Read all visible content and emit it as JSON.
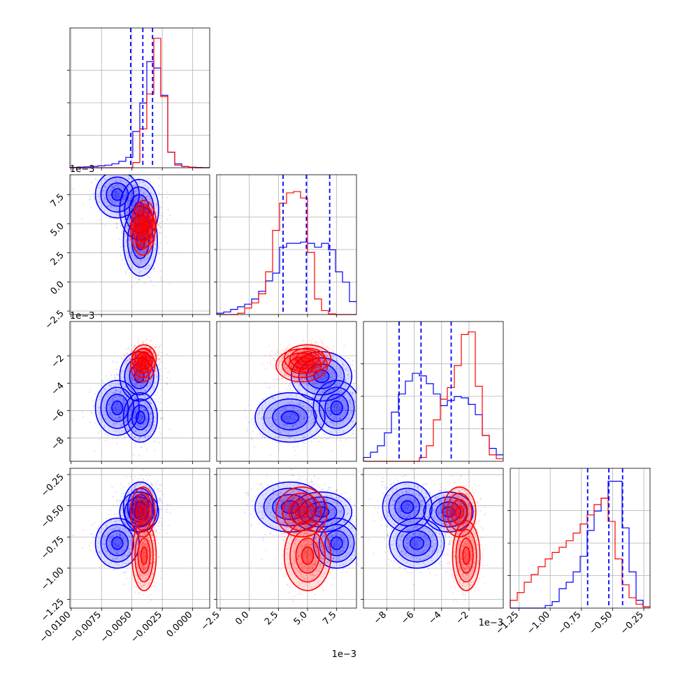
{
  "chart_data": {
    "type": "corner",
    "parameters": 4,
    "colors": {
      "blue": "#0000ff",
      "red": "#ff0000"
    },
    "series": [
      {
        "color": "blue"
      },
      {
        "color": "red"
      }
    ],
    "axes": {
      "p0": {
        "range": [
          -0.0101,
          0.0014
        ],
        "ticks": [
          -0.01,
          -0.0075,
          -0.005,
          -0.0025,
          0.0
        ],
        "tick_labels": [
          "−0.0100",
          "−0.0075",
          "−0.0050",
          "−0.0025",
          "0.0000"
        ],
        "offset_label": ""
      },
      "p1": {
        "range": [
          -0.0028,
          0.0092
        ],
        "ticks": [
          -0.0025,
          0.0,
          0.0025,
          0.005,
          0.0075
        ],
        "tick_labels": [
          "−2.5",
          "0.0",
          "2.5",
          "5.0",
          "7.5"
        ],
        "offset_label": "1e−3"
      },
      "p2": {
        "range": [
          -0.0097,
          0.0005
        ],
        "ticks": [
          -0.008,
          -0.006,
          -0.004,
          -0.002
        ],
        "tick_labels": [
          "−8",
          "−6",
          "−4",
          "−2"
        ],
        "offset_label": "1e−3"
      },
      "p3": {
        "range": [
          -1.32,
          -0.2
        ],
        "ticks": [
          -1.25,
          -1.0,
          -0.75,
          -0.5,
          -0.25
        ],
        "tick_labels": [
          "−1.25",
          "−1.00",
          "−0.75",
          "−0.50",
          "−0.25"
        ],
        "offset_label": ""
      }
    },
    "bottom_offset_labels": [
      "1e−3",
      "1e−3"
    ],
    "quantiles": {
      "p0": [
        -0.0051,
        -0.0041,
        -0.0033
      ],
      "p1": [
        0.0029,
        0.0049,
        0.0069
      ],
      "p2": [
        -0.0071,
        -0.0055,
        -0.0033
      ],
      "p3": [
        -0.7,
        -0.53,
        -0.42
      ]
    },
    "histograms": {
      "p0": {
        "blue": [
          0.003,
          0.005,
          0.007,
          0.01,
          0.015,
          0.02,
          0.03,
          0.05,
          0.08,
          0.28,
          0.5,
          0.82,
          0.77,
          0.56,
          0.12,
          0.03,
          0.01,
          0.005,
          0.002,
          0.001
        ],
        "red": [
          0,
          0,
          0,
          0,
          0,
          0,
          0,
          0,
          0,
          0.04,
          0.3,
          0.57,
          1.0,
          0.55,
          0.12,
          0.02,
          0.01,
          0.005,
          0,
          0
        ]
      },
      "p1": {
        "blue": [
          0.01,
          0.02,
          0.04,
          0.06,
          0.08,
          0.12,
          0.18,
          0.26,
          0.32,
          0.52,
          0.55,
          0.55,
          0.56,
          0.55,
          0.52,
          0.55,
          0.5,
          0.33,
          0.25,
          0.1
        ],
        "red": [
          0,
          0,
          0,
          0.01,
          0.05,
          0.09,
          0.16,
          0.33,
          0.65,
          0.86,
          0.94,
          0.95,
          0.9,
          0.48,
          0.12,
          0.03,
          0.005,
          0,
          0,
          0
        ]
      },
      "p2": {
        "blue": [
          0.03,
          0.07,
          0.12,
          0.22,
          0.38,
          0.52,
          0.62,
          0.68,
          0.66,
          0.6,
          0.52,
          0.43,
          0.47,
          0.5,
          0.49,
          0.44,
          0.36,
          0.2,
          0.1,
          0.05
        ],
        "red": [
          0,
          0,
          0,
          0,
          0,
          0,
          0,
          0,
          0.03,
          0.12,
          0.32,
          0.48,
          0.57,
          0.74,
          0.98,
          1.0,
          0.58,
          0.2,
          0.05,
          0.02
        ]
      },
      "p3": {
        "blue": [
          0,
          0,
          0,
          0,
          0,
          0.02,
          0.05,
          0.15,
          0.2,
          0.28,
          0.4,
          0.6,
          0.75,
          0.85,
          0.98,
          0.98,
          0.62,
          0.28,
          0.06,
          0.01
        ],
        "red": [
          0.06,
          0.12,
          0.2,
          0.26,
          0.32,
          0.38,
          0.43,
          0.47,
          0.52,
          0.58,
          0.65,
          0.72,
          0.8,
          0.85,
          0.67,
          0.38,
          0.18,
          0.08,
          0.03,
          0.01
        ]
      }
    },
    "modes": {
      "blue": [
        {
          "w": 0.4,
          "mean": [
            -0.0043,
            0.0035,
            -0.0065,
            -0.51
          ],
          "sd": [
            0.0007,
            0.0015,
            0.0009,
            0.1
          ]
        },
        {
          "w": 0.3,
          "mean": [
            -0.0044,
            0.0062,
            -0.0035,
            -0.55
          ],
          "sd": [
            0.0008,
            0.0013,
            0.0009,
            0.08
          ]
        },
        {
          "w": 0.3,
          "mean": [
            -0.0062,
            0.0075,
            -0.0058,
            -0.8
          ],
          "sd": [
            0.0009,
            0.001,
            0.001,
            0.1
          ]
        }
      ],
      "red": [
        {
          "w": 0.5,
          "mean": [
            -0.0041,
            0.0045,
            -0.0027,
            -0.55
          ],
          "sd": [
            0.0005,
            0.0011,
            0.0006,
            0.1
          ]
        },
        {
          "w": 0.5,
          "mean": [
            -0.004,
            0.005,
            -0.0022,
            -0.9
          ],
          "sd": [
            0.0005,
            0.001,
            0.0005,
            0.14
          ]
        }
      ]
    }
  }
}
